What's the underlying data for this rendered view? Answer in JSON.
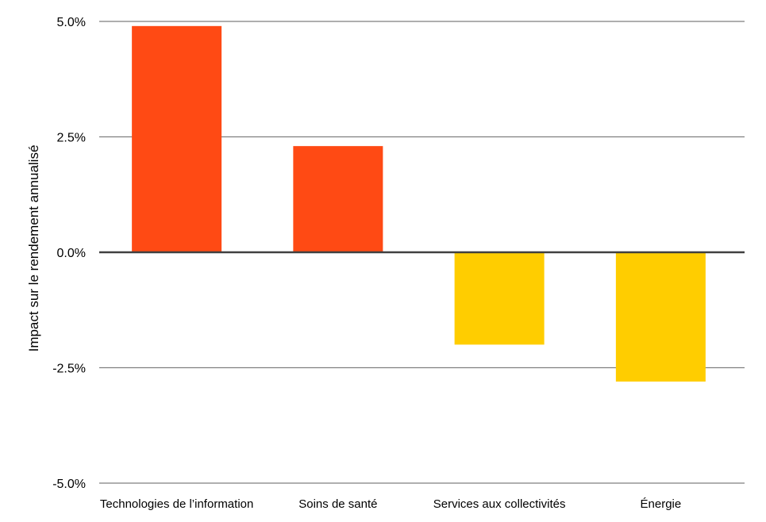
{
  "chart_data": {
    "type": "bar",
    "categories": [
      "Technologies de l’information",
      "Soins de santé",
      "Services aux collectivités",
      "Énergie"
    ],
    "values": [
      4.9,
      2.3,
      -2.0,
      -2.8
    ],
    "unit": "%",
    "xlabel": "",
    "ylabel": "Impact sur le rendement annualisé",
    "ylim": [
      -5.0,
      5.0
    ],
    "yticks": [
      5.0,
      2.5,
      0.0,
      -2.5,
      -5.0
    ],
    "ytick_labels": [
      "5.0%",
      "2.5%",
      "0.0%",
      "-2.5%",
      "-5.0%"
    ],
    "grid": "horizontal",
    "legend": "none",
    "colors": {
      "positive": "#FF4A14",
      "negative": "#FFCD00",
      "gridline": "#7f7f7f",
      "zero_line": "#404040"
    }
  }
}
